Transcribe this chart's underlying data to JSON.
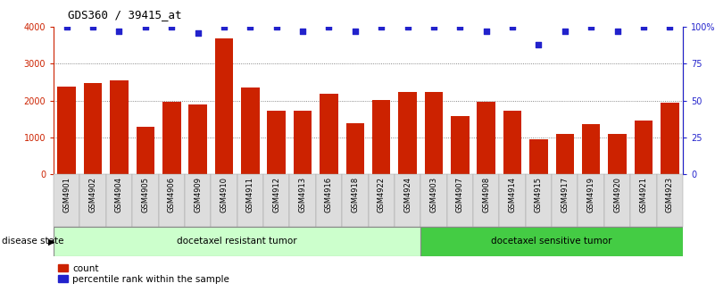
{
  "title": "GDS360 / 39415_at",
  "categories": [
    "GSM4901",
    "GSM4902",
    "GSM4904",
    "GSM4905",
    "GSM4906",
    "GSM4909",
    "GSM4910",
    "GSM4911",
    "GSM4912",
    "GSM4913",
    "GSM4916",
    "GSM4918",
    "GSM4922",
    "GSM4924",
    "GSM4903",
    "GSM4907",
    "GSM4908",
    "GSM4914",
    "GSM4915",
    "GSM4917",
    "GSM4919",
    "GSM4920",
    "GSM4921",
    "GSM4923"
  ],
  "bar_values": [
    2380,
    2480,
    2550,
    1280,
    1960,
    1880,
    3700,
    2350,
    1720,
    1720,
    2180,
    1380,
    2020,
    2230,
    2240,
    1570,
    1960,
    1720,
    940,
    1100,
    1360,
    1100,
    1460,
    1950
  ],
  "percentile_values": [
    100,
    100,
    97,
    100,
    100,
    96,
    100,
    100,
    100,
    97,
    100,
    97,
    100,
    100,
    100,
    100,
    97,
    100,
    88,
    97,
    100,
    97,
    100,
    100
  ],
  "bar_color": "#cc2200",
  "percentile_color": "#2222cc",
  "ylim_left": [
    0,
    4000
  ],
  "ylim_right": [
    0,
    100
  ],
  "yticks_left": [
    0,
    1000,
    2000,
    3000,
    4000
  ],
  "ytick_labels_left": [
    "0",
    "1000",
    "2000",
    "3000",
    "4000"
  ],
  "yticks_right": [
    0,
    25,
    50,
    75,
    100
  ],
  "ytick_labels_right": [
    "0",
    "25",
    "50",
    "75",
    "100%"
  ],
  "group1_label": "docetaxel resistant tumor",
  "group2_label": "docetaxel sensitive tumor",
  "group1_count": 14,
  "group2_count": 10,
  "disease_state_label": "disease state",
  "legend_count_label": "count",
  "legend_percentile_label": "percentile rank within the sample",
  "group1_color": "#ccffcc",
  "group2_color": "#44cc44",
  "xtick_bg_color": "#dddddd",
  "dotted_grid_color": "#666666"
}
